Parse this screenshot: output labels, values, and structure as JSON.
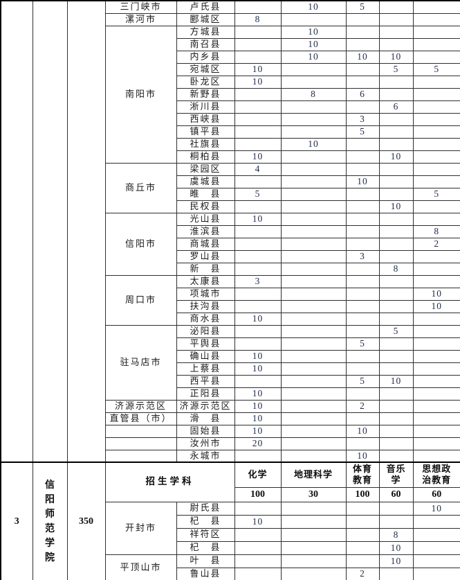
{
  "colors": {
    "chinese_text": "#1b1b1b",
    "data_number": "#1e2a47",
    "line": "#2e2e2e"
  },
  "table": {
    "left_panel": {
      "index": "3",
      "school": "信\n阳\n师\n范\n学\n院",
      "total": "350"
    },
    "header": {
      "label": "招生学科",
      "subjects": [
        "化学",
        "地理科学",
        "体育\n教育",
        "音乐\n学",
        "思想政\n治教育"
      ],
      "quotas": [
        "100",
        "30",
        "100",
        "60",
        "60"
      ]
    },
    "top_rows": [
      {
        "city": "三门峡市",
        "span": 1,
        "county": "卢氏县",
        "v": [
          "",
          "10",
          "5",
          "",
          ""
        ]
      },
      {
        "city": "漯河市",
        "span": 1,
        "county": "郾城区",
        "v": [
          "8",
          "",
          "",
          "",
          ""
        ]
      },
      {
        "city": "南阳市",
        "span": 11,
        "county": "方城县",
        "v": [
          "",
          "10",
          "",
          "",
          ""
        ]
      },
      {
        "county": "南召县",
        "v": [
          "",
          "10",
          "",
          "",
          ""
        ]
      },
      {
        "county": "内乡县",
        "v": [
          "",
          "10",
          "10",
          "10",
          ""
        ]
      },
      {
        "county": "宛城区",
        "v": [
          "10",
          "",
          "",
          "5",
          "5"
        ]
      },
      {
        "county": "卧龙区",
        "v": [
          "10",
          "",
          "",
          "",
          ""
        ]
      },
      {
        "county": "新野县",
        "v": [
          "",
          "8",
          "6",
          "",
          ""
        ]
      },
      {
        "county": "淅川县",
        "v": [
          "",
          "",
          "",
          "6",
          ""
        ]
      },
      {
        "county": "西峡县",
        "v": [
          "",
          "",
          "3",
          "",
          ""
        ]
      },
      {
        "county": "镇平县",
        "v": [
          "",
          "",
          "5",
          "",
          ""
        ]
      },
      {
        "county": "社旗县",
        "v": [
          "",
          "10",
          "",
          "",
          ""
        ]
      },
      {
        "county": "桐柏县",
        "v": [
          "10",
          "",
          "",
          "10",
          ""
        ]
      },
      {
        "city": "商丘市",
        "span": 4,
        "county": "梁园区",
        "v": [
          "4",
          "",
          "",
          "",
          ""
        ]
      },
      {
        "county": "虞城县",
        "v": [
          "",
          "",
          "10",
          "",
          ""
        ]
      },
      {
        "county": "睢　县",
        "v": [
          "5",
          "",
          "",
          "",
          "5"
        ]
      },
      {
        "county": "民权县",
        "v": [
          "",
          "",
          "",
          "10",
          ""
        ]
      },
      {
        "city": "信阳市",
        "span": 5,
        "county": "光山县",
        "v": [
          "10",
          "",
          "",
          "",
          ""
        ]
      },
      {
        "county": "淮滨县",
        "v": [
          "",
          "",
          "",
          "",
          "8"
        ]
      },
      {
        "county": "商城县",
        "v": [
          "",
          "",
          "",
          "",
          "2"
        ]
      },
      {
        "county": "罗山县",
        "v": [
          "",
          "",
          "3",
          "",
          ""
        ]
      },
      {
        "county": "新　县",
        "v": [
          "",
          "",
          "",
          "8",
          ""
        ]
      },
      {
        "city": "周口市",
        "span": 4,
        "county": "太康县",
        "v": [
          "3",
          "",
          "",
          "",
          ""
        ]
      },
      {
        "county": "项城市",
        "v": [
          "",
          "",
          "",
          "",
          "10"
        ]
      },
      {
        "county": "扶沟县",
        "v": [
          "",
          "",
          "",
          "",
          "10"
        ]
      },
      {
        "county": "商水县",
        "v": [
          "10",
          "",
          "",
          "",
          ""
        ]
      },
      {
        "city": "驻马店市",
        "span": 6,
        "county": "泌阳县",
        "v": [
          "",
          "",
          "",
          "5",
          ""
        ]
      },
      {
        "county": "平舆县",
        "v": [
          "",
          "",
          "5",
          "",
          ""
        ]
      },
      {
        "county": "确山县",
        "v": [
          "10",
          "",
          "",
          "",
          ""
        ]
      },
      {
        "county": "上蔡县",
        "v": [
          "10",
          "",
          "",
          "",
          ""
        ]
      },
      {
        "county": "西平县",
        "v": [
          "",
          "",
          "5",
          "10",
          ""
        ]
      },
      {
        "county": "正阳县",
        "v": [
          "10",
          "",
          "",
          "",
          ""
        ]
      },
      {
        "city": "济源示范区",
        "span": 1,
        "county": "济源示范区",
        "v": [
          "10",
          "",
          "2",
          "",
          ""
        ]
      },
      {
        "city": "直管县（市）",
        "span": 1,
        "county": "滑　县",
        "v": [
          "10",
          "",
          "",
          "",
          ""
        ]
      },
      {
        "city": "",
        "span": 1,
        "county": "固始县",
        "v": [
          "10",
          "",
          "10",
          "",
          ""
        ]
      },
      {
        "city": "",
        "span": 1,
        "county": "汝州市",
        "v": [
          "20",
          "",
          "",
          "",
          ""
        ]
      },
      {
        "city": "",
        "span": 1,
        "county": "永城市",
        "v": [
          "",
          "",
          "10",
          "",
          ""
        ]
      }
    ],
    "bottom_rows": [
      {
        "city": "开封市",
        "span": 4,
        "county": "尉氏县",
        "v": [
          "",
          "",
          "",
          "",
          "10"
        ]
      },
      {
        "county": "杞　县",
        "v": [
          "10",
          "",
          "",
          "",
          ""
        ]
      },
      {
        "county": "祥符区",
        "v": [
          "",
          "",
          "",
          "8",
          ""
        ]
      },
      {
        "county": "杞　县",
        "v": [
          "",
          "",
          "",
          "10",
          ""
        ]
      },
      {
        "city": "平顶山市",
        "span": 2,
        "county": "叶　县",
        "v": [
          "",
          "",
          "",
          "10",
          ""
        ]
      },
      {
        "county": "鲁山县",
        "v": [
          "",
          "",
          "2",
          "",
          ""
        ]
      }
    ]
  }
}
